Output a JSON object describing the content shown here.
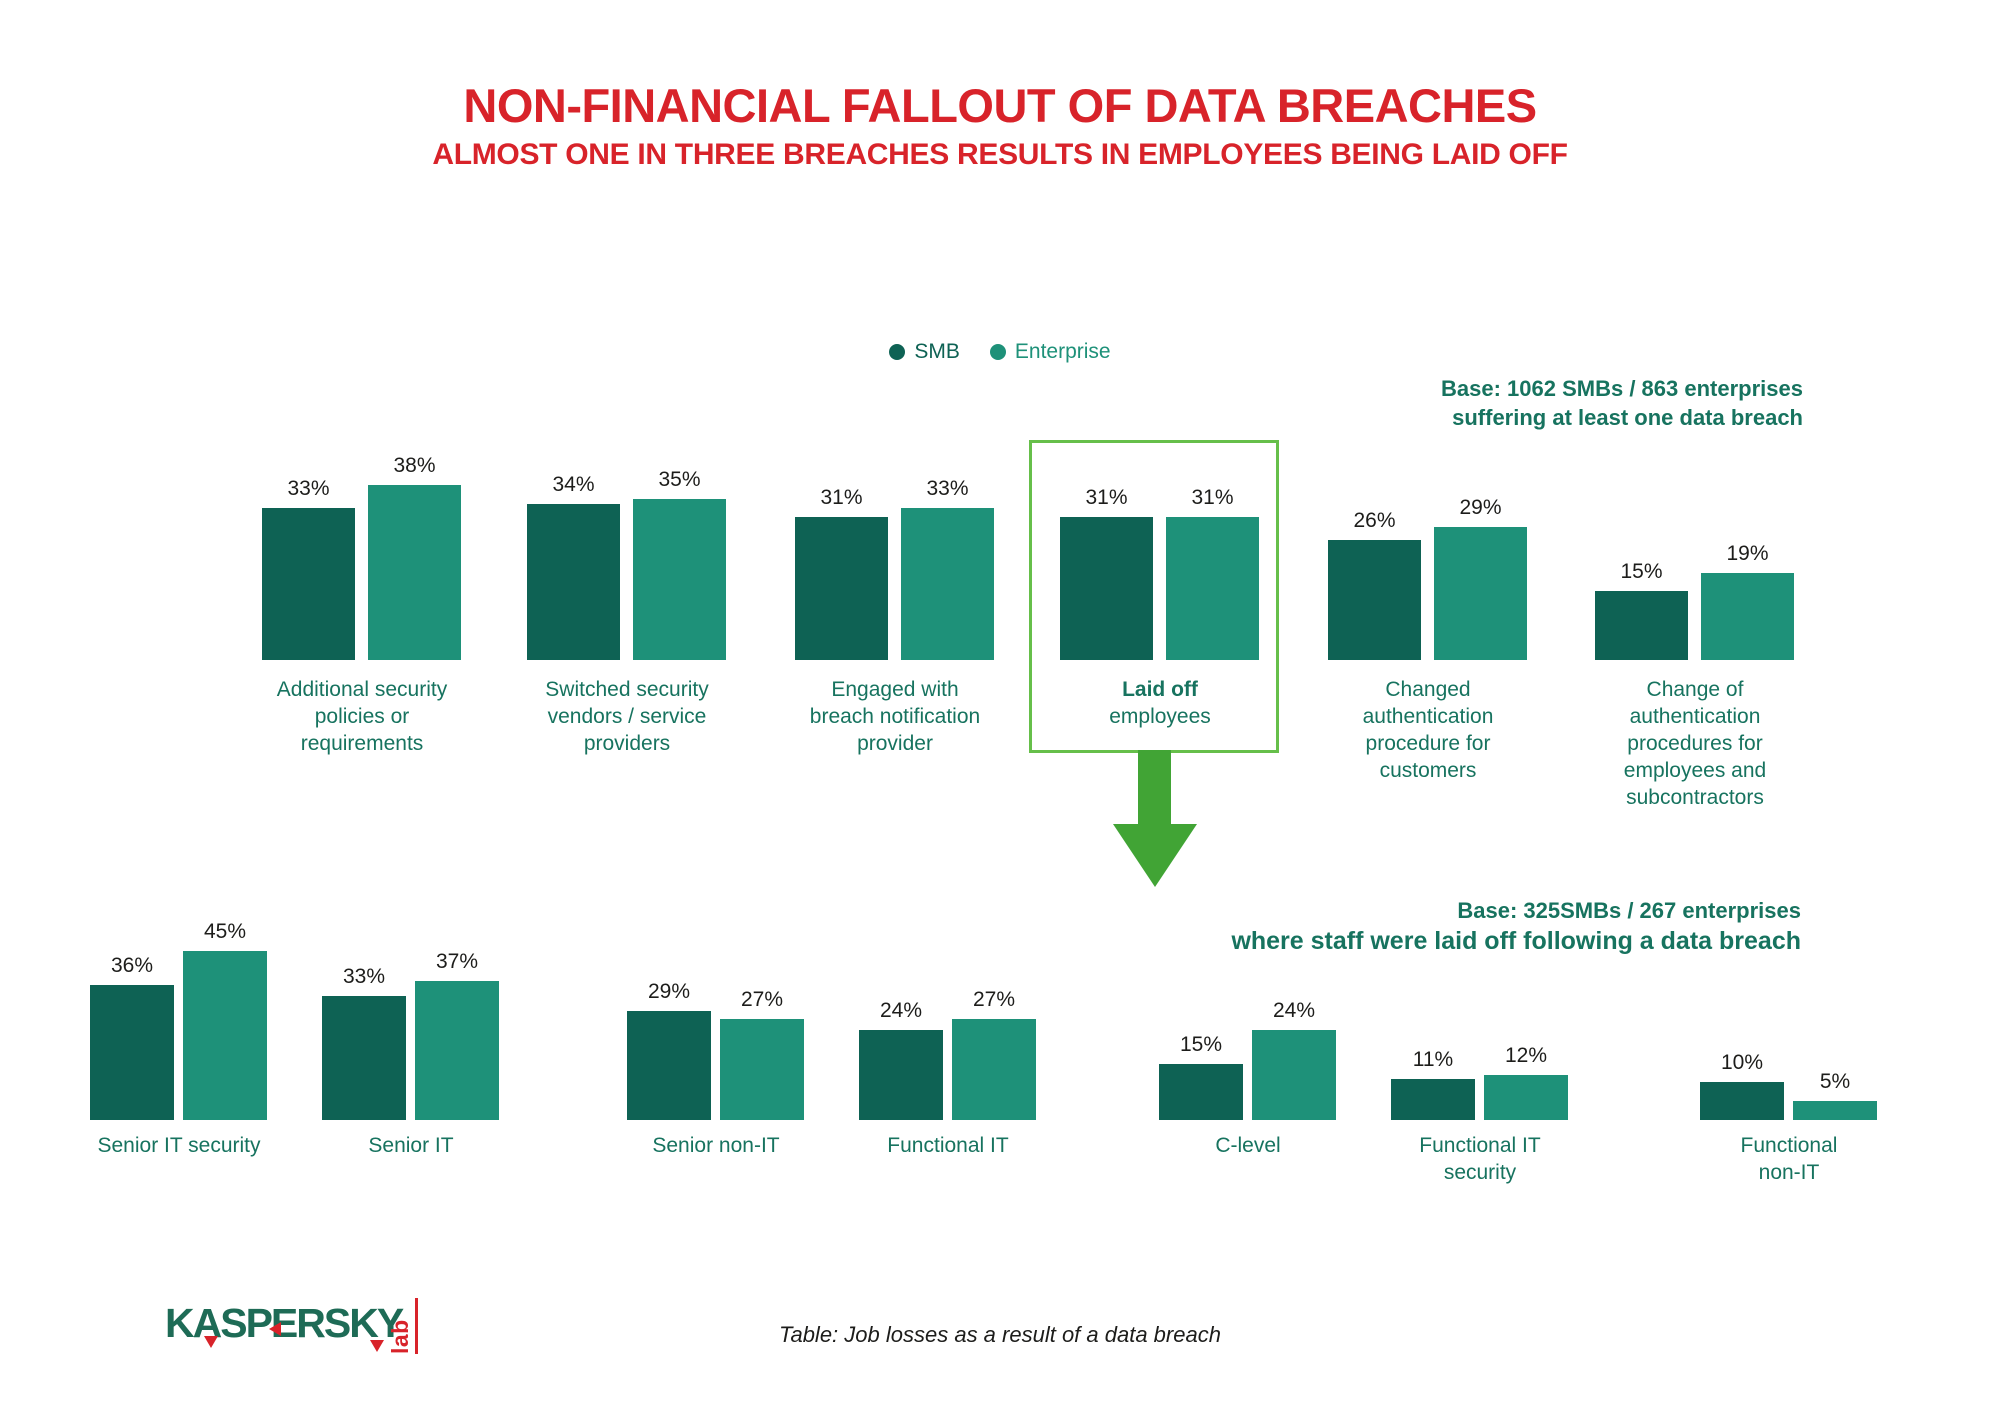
{
  "header": {
    "title": "NON-FINANCIAL FALLOUT OF DATA BREACHES",
    "subtitle": "ALMOST ONE IN THREE BREACHES RESULTS IN EMPLOYEES BEING LAID OFF"
  },
  "legend": {
    "items": [
      {
        "label": "SMB",
        "color": "#0e6254"
      },
      {
        "label": "Enterprise",
        "color": "#1e9179"
      }
    ]
  },
  "colors": {
    "smb": "#0e6254",
    "enterprise": "#1e9179",
    "accent_red": "#d8232a",
    "teal_text": "#17735f",
    "value_text": "#1d1d1b",
    "highlight_border": "#66bf4a",
    "arrow_green": "#41a435",
    "logo_green": "#1e6b56"
  },
  "chart_data": [
    {
      "type": "bar",
      "title": "Non-financial fallout of data breaches",
      "categories": [
        "Additional security policies or requirements",
        "Switched security vendors / service providers",
        "Engaged with breach notification provider",
        "Laid off employees",
        "Changed authentication procedure for customers",
        "Change of authentication procedures for employees and subcontractors"
      ],
      "category_lines": [
        [
          "Additional security",
          "policies or",
          "requirements"
        ],
        [
          "Switched security",
          "vendors / service",
          "providers"
        ],
        [
          "Engaged with",
          "breach notification",
          "provider"
        ],
        [
          "Laid off",
          "employees"
        ],
        [
          "Changed",
          "authentication",
          "procedure for",
          "customers"
        ],
        [
          "Change of",
          "authentication",
          "procedures for",
          "employees and",
          "subcontractors"
        ]
      ],
      "series": [
        {
          "name": "SMB",
          "values": [
            33,
            34,
            31,
            31,
            26,
            15
          ]
        },
        {
          "name": "Enterprise",
          "values": [
            38,
            35,
            33,
            31,
            29,
            19
          ]
        }
      ],
      "value_suffix": "%",
      "ylim": [
        0,
        45
      ],
      "grid": false,
      "legend_position": "top-center",
      "highlight_index": 3,
      "base_note_lines": [
        "Base: 1062 SMBs / 863 enterprises",
        "suffering at least one data breach"
      ]
    },
    {
      "type": "bar",
      "title": "Job losses as a result of a data breach",
      "categories": [
        "Senior IT security",
        "Senior IT",
        "Senior non-IT",
        "Functional IT",
        "C-level",
        "Functional IT security",
        "Functional non-IT"
      ],
      "category_lines": [
        [
          "Senior IT security"
        ],
        [
          "Senior IT"
        ],
        [
          "Senior non-IT"
        ],
        [
          "Functional IT"
        ],
        [
          "C-level"
        ],
        [
          "Functional IT",
          "security"
        ],
        [
          "Functional",
          "non-IT"
        ]
      ],
      "series": [
        {
          "name": "SMB",
          "values": [
            36,
            33,
            29,
            24,
            15,
            11,
            10
          ]
        },
        {
          "name": "Enterprise",
          "values": [
            45,
            37,
            27,
            27,
            24,
            12,
            5
          ]
        }
      ],
      "value_suffix": "%",
      "ylim": [
        0,
        45
      ],
      "grid": false,
      "highlight_index": null,
      "base_note_lines": [
        "Base: 325SMBs / 267 enterprises",
        "where staff were laid off following a data breach"
      ]
    }
  ],
  "footer": {
    "logo_text": "KASPERSKY",
    "logo_sub": "lab",
    "caption": "Table: Job losses as a result of a data breach"
  }
}
